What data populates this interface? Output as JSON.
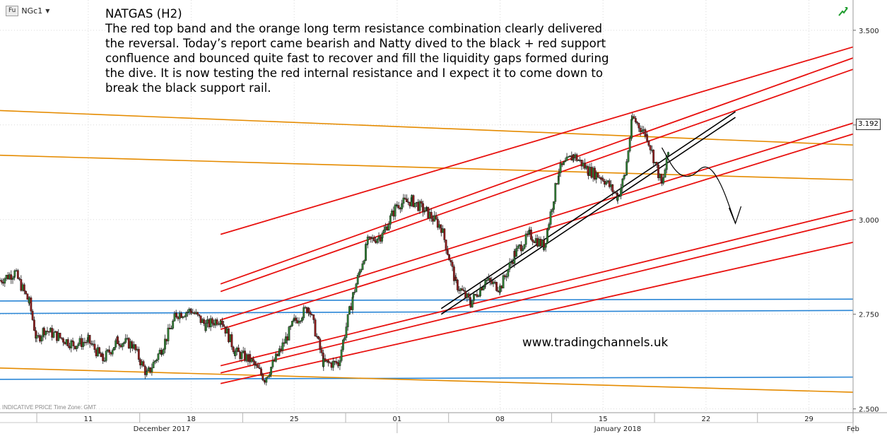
{
  "header": {
    "fu_badge": "Fu",
    "symbol": "NGc1",
    "dropdown_caret": "▼",
    "trend_icon": "green-trend-arrow-icon"
  },
  "headline": {
    "title": "NATGAS (H2)",
    "lines": [
      "The red top band and the orange long term resistance combination clearly delivered",
      "the reversal. Today’s report came bearish and Natty dived to the black + red support",
      "confluence and bounced quite fast to recover and fill the liquidity gaps formed during",
      "the dive. It is now testing the red internal resistance and I expect it to come down to",
      "break the black support rail."
    ]
  },
  "watermark": "www.tradingchannels.uk",
  "footer_note": "INDICATIVE PRICE   Time Zone: GMT",
  "last_price_tag": "3.192",
  "colors": {
    "red_channel": "#e8110f",
    "orange_line": "#e58b00",
    "blue_line": "#2a86d6",
    "black_rail": "#000000",
    "candle_up": "#2e7d32",
    "candle_down": "#8b1a1a",
    "grid": "#d9d9d9",
    "axis_text": "#222222"
  },
  "chart_data": {
    "type": "candlestick",
    "title": "NATGAS (H2)",
    "series_name": "NGc1",
    "y_axis": {
      "ylim": [
        2.49,
        3.58
      ],
      "ticks": [
        "3.500",
        "3.250",
        "3.000",
        "2.750",
        "2.500"
      ],
      "tick_values": [
        3.5,
        3.25,
        3.0,
        2.75,
        2.5
      ]
    },
    "x_axis": {
      "xlim": [
        "2017-12-05",
        "2018-02-01"
      ],
      "day_labels": [
        {
          "label": "11",
          "date": "2017-12-11"
        },
        {
          "label": "18",
          "date": "2017-12-18"
        },
        {
          "label": "25",
          "date": "2017-12-25"
        },
        {
          "label": "01",
          "date": "2018-01-01"
        },
        {
          "label": "08",
          "date": "2018-01-08"
        },
        {
          "label": "15",
          "date": "2018-01-15"
        },
        {
          "label": "22",
          "date": "2018-01-22"
        },
        {
          "label": "29",
          "date": "2018-01-29"
        }
      ],
      "month_labels": [
        {
          "label": "December 2017",
          "date": "2017-12-16"
        },
        {
          "label": "January 2018",
          "date": "2018-01-16"
        },
        {
          "label": "Feb",
          "date": "2018-02-01"
        }
      ],
      "month_dividers": [
        "2018-01-01",
        "2018-02-01"
      ]
    },
    "price_path": [
      [
        "2017-12-05",
        2.84
      ],
      [
        "2017-12-06",
        2.86
      ],
      [
        "2017-12-07",
        2.78
      ],
      [
        "2017-12-07",
        2.68
      ],
      [
        "2017-12-08",
        2.71
      ],
      [
        "2017-12-10",
        2.67
      ],
      [
        "2017-12-11",
        2.68
      ],
      [
        "2017-12-12",
        2.63
      ],
      [
        "2017-12-13",
        2.68
      ],
      [
        "2017-12-14",
        2.67
      ],
      [
        "2017-12-15",
        2.59
      ],
      [
        "2017-12-16",
        2.66
      ],
      [
        "2017-12-17",
        2.75
      ],
      [
        "2017-12-18",
        2.76
      ],
      [
        "2017-12-19",
        2.72
      ],
      [
        "2017-12-20",
        2.74
      ],
      [
        "2017-12-21",
        2.65
      ],
      [
        "2017-12-22",
        2.63
      ],
      [
        "2017-12-23",
        2.58
      ],
      [
        "2017-12-24",
        2.65
      ],
      [
        "2017-12-25",
        2.73
      ],
      [
        "2017-12-26",
        2.77
      ],
      [
        "2017-12-27",
        2.62
      ],
      [
        "2017-12-28",
        2.62
      ],
      [
        "2017-12-29",
        2.8
      ],
      [
        "2017-12-30",
        2.94
      ],
      [
        "2017-12-31",
        2.96
      ],
      [
        "2018-01-01",
        3.04
      ],
      [
        "2018-01-02",
        3.05
      ],
      [
        "2018-01-03",
        3.02
      ],
      [
        "2018-01-04",
        2.98
      ],
      [
        "2018-01-05",
        2.83
      ],
      [
        "2018-01-06",
        2.78
      ],
      [
        "2018-01-07",
        2.84
      ],
      [
        "2018-01-08",
        2.82
      ],
      [
        "2018-01-09",
        2.91
      ],
      [
        "2018-01-10",
        2.96
      ],
      [
        "2018-01-11",
        2.93
      ],
      [
        "2018-01-12",
        3.13
      ],
      [
        "2018-01-13",
        3.17
      ],
      [
        "2018-01-14",
        3.13
      ],
      [
        "2018-01-15",
        3.11
      ],
      [
        "2018-01-16",
        3.06
      ],
      [
        "2018-01-16",
        3.12
      ],
      [
        "2018-01-17",
        3.27
      ],
      [
        "2018-01-18",
        3.22
      ],
      [
        "2018-01-19",
        3.09
      ],
      [
        "2018-01-19",
        3.19
      ]
    ],
    "trend_lines": {
      "red": [
        {
          "from": [
            "2017-12-20",
            2.961
          ],
          "to": [
            "2018-02-01",
            3.456
          ]
        },
        {
          "from": [
            "2017-12-20",
            2.83
          ],
          "to": [
            "2018-02-01",
            3.427
          ]
        },
        {
          "from": [
            "2017-12-20",
            2.81
          ],
          "to": [
            "2018-02-01",
            3.397
          ]
        },
        {
          "from": [
            "2017-12-20",
            2.735
          ],
          "to": [
            "2018-02-01",
            3.255
          ]
        },
        {
          "from": [
            "2017-12-20",
            2.71
          ],
          "to": [
            "2018-02-01",
            3.226
          ]
        },
        {
          "from": [
            "2017-12-20",
            2.614
          ],
          "to": [
            "2018-02-01",
            3.024
          ]
        },
        {
          "from": [
            "2017-12-20",
            2.595
          ],
          "to": [
            "2018-02-01",
            3.0
          ]
        },
        {
          "from": [
            "2017-12-20",
            2.567
          ],
          "to": [
            "2018-02-01",
            2.94
          ]
        }
      ],
      "orange": [
        {
          "from": [
            "2017-12-05",
            3.288
          ],
          "to": [
            "2018-02-01",
            3.197
          ]
        },
        {
          "from": [
            "2017-12-05",
            3.17
          ],
          "to": [
            "2018-02-01",
            3.105
          ]
        },
        {
          "from": [
            "2017-12-05",
            2.608
          ],
          "to": [
            "2018-02-01",
            2.544
          ]
        }
      ],
      "blue": [
        {
          "from": [
            "2017-12-05",
            2.785
          ],
          "to": [
            "2018-02-01",
            2.79
          ]
        },
        {
          "from": [
            "2017-12-05",
            2.752
          ],
          "to": [
            "2018-02-01",
            2.76
          ]
        },
        {
          "from": [
            "2017-12-05",
            2.578
          ],
          "to": [
            "2018-02-01",
            2.584
          ]
        }
      ],
      "black": [
        {
          "from": [
            "2018-01-04",
            2.765
          ],
          "to": [
            "2018-01-24",
            3.285
          ]
        },
        {
          "from": [
            "2018-01-04",
            2.75
          ],
          "to": [
            "2018-01-24",
            3.27
          ]
        }
      ]
    },
    "projection_arrow": [
      [
        "2018-01-19",
        3.19
      ],
      [
        "2018-01-20",
        3.12
      ],
      [
        "2018-01-21",
        3.11
      ],
      [
        "2018-01-22",
        3.15
      ],
      [
        "2018-01-23",
        3.1
      ],
      [
        "2018-01-24",
        2.99
      ]
    ],
    "grid": true,
    "legend": "none"
  }
}
